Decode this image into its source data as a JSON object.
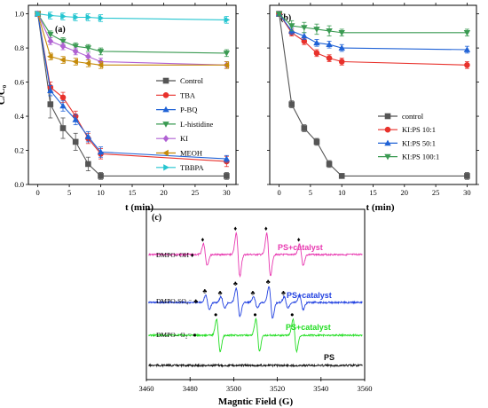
{
  "chart_data": [
    {
      "type": "line",
      "panel_label": "(a)",
      "xlabel": "t (min)",
      "ylabel": "C/C₀",
      "xlim": [
        -1.5,
        31.5
      ],
      "ylim": [
        0,
        1.05
      ],
      "xticks": [
        0,
        5,
        10,
        15,
        20,
        25,
        30
      ],
      "yticks": [
        0.0,
        0.2,
        0.4,
        0.6,
        0.8,
        1.0
      ],
      "legend_position": "center-right",
      "x": [
        0,
        2,
        4,
        6,
        8,
        10,
        30
      ],
      "series": [
        {
          "name": "Control",
          "color": "#555555",
          "marker": "square",
          "values": [
            1.0,
            0.47,
            0.33,
            0.25,
            0.12,
            0.05,
            0.05
          ],
          "errors": [
            0.01,
            0.08,
            0.06,
            0.05,
            0.04,
            0.02,
            0.02
          ]
        },
        {
          "name": "TBA",
          "color": "#e8312b",
          "marker": "circle",
          "values": [
            1.0,
            0.57,
            0.51,
            0.4,
            0.27,
            0.18,
            0.135
          ],
          "errors": [
            0.01,
            0.03,
            0.03,
            0.03,
            0.03,
            0.03,
            0.03
          ]
        },
        {
          "name": "P-BQ",
          "color": "#1f62d6",
          "marker": "triangle-up",
          "values": [
            1.0,
            0.55,
            0.46,
            0.38,
            0.28,
            0.19,
            0.15
          ],
          "errors": [
            0.01,
            0.03,
            0.03,
            0.03,
            0.03,
            0.03,
            0.02
          ]
        },
        {
          "name": "L-histidine",
          "color": "#3a9a52",
          "marker": "triangle-down",
          "values": [
            1.0,
            0.88,
            0.84,
            0.81,
            0.8,
            0.78,
            0.77
          ],
          "errors": [
            0.01,
            0.02,
            0.02,
            0.02,
            0.02,
            0.02,
            0.02
          ]
        },
        {
          "name": "KI",
          "color": "#b061d3",
          "marker": "diamond",
          "values": [
            1.0,
            0.84,
            0.81,
            0.78,
            0.75,
            0.72,
            0.7
          ],
          "errors": [
            0.01,
            0.02,
            0.02,
            0.02,
            0.02,
            0.02,
            0.02
          ]
        },
        {
          "name": "MEOH",
          "color": "#c58a09",
          "marker": "triangle-left",
          "values": [
            1.0,
            0.75,
            0.73,
            0.72,
            0.71,
            0.7,
            0.7
          ],
          "errors": [
            0.01,
            0.02,
            0.02,
            0.02,
            0.02,
            0.02,
            0.02
          ]
        },
        {
          "name": "TBBPA",
          "color": "#25c5d0",
          "marker": "triangle-right",
          "values": [
            1.0,
            0.99,
            0.985,
            0.98,
            0.98,
            0.975,
            0.965
          ],
          "errors": [
            0.01,
            0.02,
            0.02,
            0.02,
            0.02,
            0.02,
            0.02
          ]
        }
      ]
    },
    {
      "type": "line",
      "panel_label": "(b)",
      "xlabel": "t (min)",
      "ylabel": "",
      "xlim": [
        -1.5,
        31.5
      ],
      "ylim": [
        0,
        1.05
      ],
      "xticks": [
        0,
        5,
        10,
        15,
        20,
        25,
        30
      ],
      "yticks": [],
      "legend_position": "lower-right",
      "x": [
        0,
        2,
        4,
        6,
        8,
        10,
        30
      ],
      "series": [
        {
          "name": "control",
          "color": "#555555",
          "marker": "square",
          "values": [
            1.0,
            0.47,
            0.33,
            0.25,
            0.12,
            0.05,
            0.05
          ],
          "errors": [
            0.01,
            0.02,
            0.02,
            0.02,
            0.02,
            0.01,
            0.02
          ]
        },
        {
          "name": "KI:PS 10:1",
          "color": "#e8312b",
          "marker": "circle",
          "values": [
            1.0,
            0.89,
            0.84,
            0.77,
            0.74,
            0.72,
            0.7
          ],
          "errors": [
            0.01,
            0.02,
            0.02,
            0.02,
            0.02,
            0.02,
            0.02
          ]
        },
        {
          "name": "KI:PS 50:1",
          "color": "#1f62d6",
          "marker": "triangle-up",
          "values": [
            1.0,
            0.9,
            0.87,
            0.83,
            0.82,
            0.8,
            0.79
          ],
          "errors": [
            0.01,
            0.02,
            0.02,
            0.02,
            0.02,
            0.02,
            0.02
          ]
        },
        {
          "name": "KI:PS 100:1",
          "color": "#3a9a52",
          "marker": "triangle-down",
          "values": [
            1.0,
            0.93,
            0.92,
            0.91,
            0.9,
            0.89,
            0.89
          ],
          "errors": [
            0.01,
            0.03,
            0.03,
            0.03,
            0.03,
            0.02,
            0.02
          ]
        }
      ]
    },
    {
      "type": "line",
      "panel_label": "(c)",
      "xlabel": "Magntic Field (G)",
      "ylabel": "",
      "xlim": [
        3460,
        3560
      ],
      "xticks": [
        3460,
        3480,
        3500,
        3520,
        3540,
        3560
      ],
      "legend_position": "none",
      "series": [
        {
          "name": "PS+catalyst",
          "label": "DMPO- OH ♦",
          "color": "#e838b0",
          "peak_fields": [
            3487,
            3502,
            3516,
            3531
          ],
          "amplitudes": [
            0.5,
            1.0,
            1.0,
            0.5
          ],
          "markers": [
            "♦",
            "♦",
            "♦",
            "♦"
          ]
        },
        {
          "name": "PS+catalyst",
          "label": "DMPO-SO₄⁻ ♣",
          "color": "#1f3fe0",
          "peak_fields": [
            3488,
            3495,
            3502,
            3510,
            3517,
            3524,
            3531
          ],
          "amplitudes": [
            0.45,
            0.35,
            0.9,
            0.35,
            1.0,
            0.35,
            0.45
          ],
          "markers": [
            "♣",
            "♣",
            "♣",
            "♣",
            "♣",
            "♣"
          ]
        },
        {
          "name": "PS+catalyst",
          "label": "DMPO– O₂⁻ ●",
          "color": "#22dd22",
          "peak_fields": [
            3493,
            3511,
            3528
          ],
          "amplitudes": [
            1.0,
            1.0,
            1.0
          ],
          "markers": [
            "●",
            "●",
            "●"
          ]
        },
        {
          "name": "PS",
          "label": "",
          "color": "#111111",
          "peak_fields": [],
          "amplitudes": [],
          "markers": []
        }
      ]
    }
  ]
}
